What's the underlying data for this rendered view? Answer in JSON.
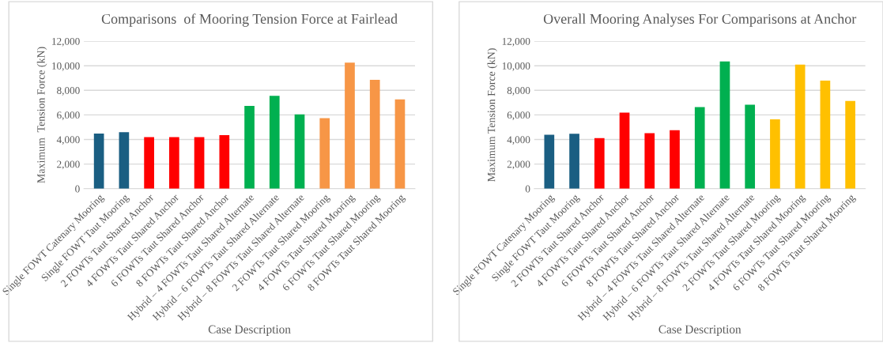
{
  "chart_data": [
    {
      "type": "bar",
      "title": "Comparisons  of Mooring Tension Force at Fairlead",
      "xlabel": "Case Description",
      "ylabel": "Maximum  Tension Force (kN)",
      "categories": [
        "Single FOWT Catenary Mooring",
        "Single FOWT Taut Mooring",
        "2 FOWTs Taut Shared Anchor",
        "4 FOWTs Taut Shared Anchor",
        "6 FOWTs Taut Shared Anchor",
        "8 FOWTs Taut Shared Anchor",
        "Hybrid – 4 FOWTs Taut Shared Alternate",
        "Hybrid – 6 FOWTs Taut Shared Alternate",
        "Hybrid – 8 FOWTs Taut Shared Alternate",
        "2 FOWTs Taut Shared Mooring",
        "4 FOWTs Taut Shared Mooring",
        "6 FOWTs Taut Shared Mooring",
        "8 FOWTs Taut Shared Mooring"
      ],
      "values": [
        4480,
        4600,
        4200,
        4200,
        4200,
        4360,
        6730,
        7550,
        6040,
        5730,
        10250,
        8860,
        7260
      ],
      "colors": [
        "#1a5e82",
        "#1a5e82",
        "#ff0000",
        "#ff0000",
        "#ff0000",
        "#ff0000",
        "#00b050",
        "#00b050",
        "#00b050",
        "#f79646",
        "#f79646",
        "#f79646",
        "#f79646"
      ],
      "ylim": [
        0,
        12000
      ],
      "yticks": [
        0,
        {
          "value": 2000,
          "label": "2,000"
        },
        {
          "value": 4000,
          "label": "4,000"
        },
        {
          "value": 6000,
          "label": "6,000"
        },
        {
          "value": 8000,
          "label": "8,000"
        },
        {
          "value": 10000,
          "label": "10,000"
        },
        {
          "value": 12000,
          "label": "12,000"
        }
      ],
      "grid": "y"
    },
    {
      "type": "bar",
      "title": "Overall Mooring Analyses For Comparisons at Anchor",
      "xlabel": "Case Description",
      "ylabel": "Maximum Tension Force (kN)",
      "categories": [
        "Single FOWT Catenary Mooring",
        "Single FOWT Taut Mooring",
        "2 FOWTs Taut Shared Anchor",
        "4 FOWTs Taut Shared Anchor",
        "6 FOWTs Taut Shared Anchor",
        "8 FOWTs Taut Shared Anchor",
        "Hybrid – 4 FOWTs Taut Shared Alternate",
        "Hybrid – 6 FOWTs Taut Shared Alternate",
        "Hybrid – 8 FOWTs Taut Shared Alternate",
        "2 FOWTs Taut Shared Mooring",
        "4 FOWTs Taut Shared Mooring",
        "6 FOWTs Taut Shared Mooring",
        "8 FOWTs Taut Shared Mooring"
      ],
      "values": [
        4380,
        4470,
        4110,
        6180,
        4510,
        4760,
        6640,
        10350,
        6830,
        5640,
        10100,
        8790,
        7140
      ],
      "colors": [
        "#1a5e82",
        "#1a5e82",
        "#ff0000",
        "#ff0000",
        "#ff0000",
        "#ff0000",
        "#00b050",
        "#00b050",
        "#00b050",
        "#ffc000",
        "#ffc000",
        "#ffc000",
        "#ffc000"
      ],
      "ylim": [
        0,
        12000
      ],
      "yticks": [
        0,
        {
          "value": 2000,
          "label": "2,000"
        },
        {
          "value": 4000,
          "label": "4,000"
        },
        {
          "value": 6000,
          "label": "6,000"
        },
        {
          "value": 8000,
          "label": "8,000"
        },
        {
          "value": 10000,
          "label": "10,000"
        },
        {
          "value": 12000,
          "label": "12,000"
        }
      ],
      "grid": "y"
    }
  ]
}
